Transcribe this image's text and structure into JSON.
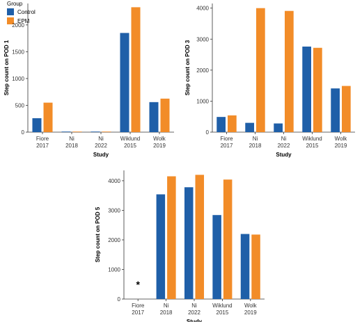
{
  "colors": {
    "control": "#1f5fa8",
    "epm": "#f28c28",
    "axis": "#333333"
  },
  "legend": {
    "title": "Group",
    "items": [
      {
        "label": "Control",
        "color": "#1f5fa8"
      },
      {
        "label": "EPM",
        "color": "#f28c28"
      }
    ]
  },
  "chart_data": [
    {
      "type": "bar",
      "categories": [
        [
          "Fiore",
          "2017"
        ],
        [
          "Ni",
          "2018"
        ],
        [
          "Ni",
          "2022"
        ],
        [
          "Wiklund",
          "2015"
        ],
        [
          "Wolk",
          "2019"
        ]
      ],
      "series": [
        {
          "name": "Control",
          "values": [
            260,
            5,
            5,
            1850,
            560
          ]
        },
        {
          "name": "EPM",
          "values": [
            550,
            5,
            5,
            2330,
            625
          ]
        }
      ],
      "xlabel": "Study",
      "ylabel": "Step count on POD 1",
      "yticks": [
        0,
        500,
        1000,
        1500,
        2000
      ],
      "ylim": [
        0,
        2400
      ],
      "annotations": []
    },
    {
      "type": "bar",
      "categories": [
        [
          "Fiore",
          "2017"
        ],
        [
          "Ni",
          "2018"
        ],
        [
          "Ni",
          "2022"
        ],
        [
          "Wiklund",
          "2015"
        ],
        [
          "Wolk",
          "2019"
        ]
      ],
      "series": [
        {
          "name": "Control",
          "values": [
            490,
            300,
            280,
            2760,
            1410
          ]
        },
        {
          "name": "EPM",
          "values": [
            540,
            4000,
            3910,
            2720,
            1490
          ]
        }
      ],
      "xlabel": "Study",
      "ylabel": "Step count on POD 3",
      "yticks": [
        0,
        1000,
        2000,
        3000,
        4000
      ],
      "ylim": [
        0,
        4150
      ],
      "annotations": []
    },
    {
      "type": "bar",
      "categories": [
        [
          "Fiore",
          "2017"
        ],
        [
          "Ni",
          "2018"
        ],
        [
          "Ni",
          "2022"
        ],
        [
          "Wiklund",
          "2015"
        ],
        [
          "Wolk",
          "2019"
        ]
      ],
      "series": [
        {
          "name": "Control",
          "values": [
            null,
            3540,
            3780,
            2840,
            2200
          ]
        },
        {
          "name": "EPM",
          "values": [
            null,
            4150,
            4200,
            4040,
            2180
          ]
        }
      ],
      "xlabel": "Study",
      "ylabel": "Step count on POD 5",
      "yticks": [
        0,
        1000,
        2000,
        3000,
        4000
      ],
      "ylim": [
        0,
        4350
      ],
      "annotations": [
        {
          "category_index": 0,
          "text": "*"
        }
      ]
    }
  ]
}
